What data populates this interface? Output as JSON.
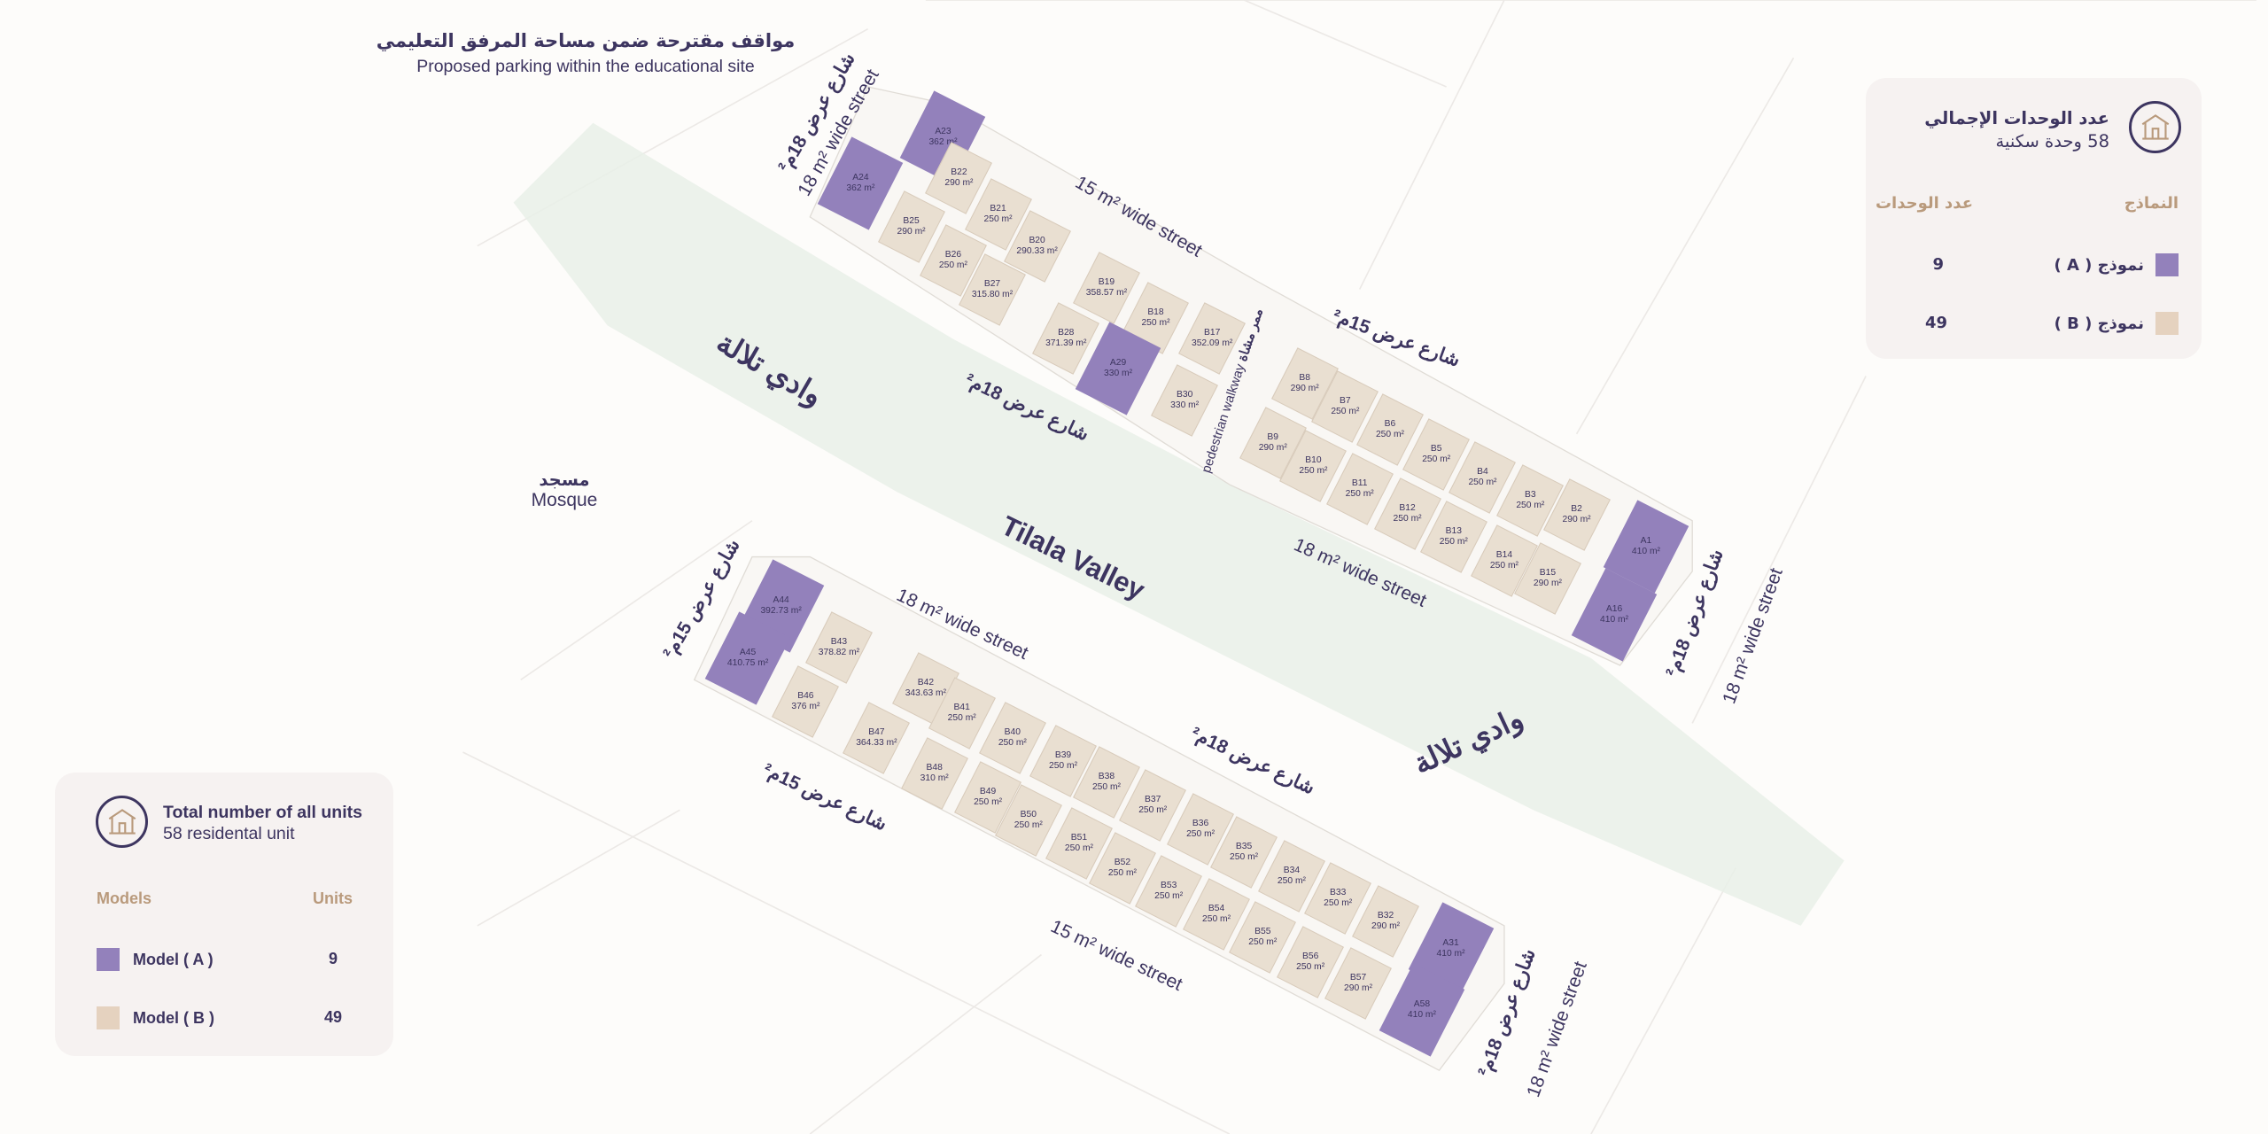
{
  "header": {
    "title_ar": "مواقف مقترحة ضمن مساحة المرفق التعليمي",
    "title_en": "Proposed parking within the educational site"
  },
  "colors": {
    "model_a": "#9381bb",
    "model_b": "#e9dfd1",
    "text": "#3d3560",
    "accent": "#b99a7c",
    "valley": "#e9f0e7"
  },
  "legend_en": {
    "icon": "house-icon",
    "title": "Total number of all units",
    "subtitle": "58 residental unit",
    "col_models": "Models",
    "col_units": "Units",
    "rows": [
      {
        "label": "Model ( A )",
        "units": "9"
      },
      {
        "label": "Model ( B )",
        "units": "49"
      }
    ]
  },
  "legend_ar": {
    "icon": "house-icon",
    "title": "عدد الوحدات الإجمالي",
    "subtitle": "58 وحدة سكنية",
    "col_models": "النماذج",
    "col_units": "عدد الوحدات",
    "rows": [
      {
        "label": "نموذج ( A )",
        "units": "9"
      },
      {
        "label": "نموذج ( B )",
        "units": "49"
      }
    ]
  },
  "places": {
    "mosque_ar": "مسجد",
    "mosque_en": "Mosque",
    "valley_en": "Tilala Valley",
    "valley_ar": "وادي تلالة",
    "walkway_ar": "ممر مشاة",
    "walkway_en": "pedestrian walkway"
  },
  "streets": [
    {
      "text": "شارع عرض 18م²"
    },
    {
      "text": "18 m² wide street"
    },
    {
      "text": "15 m² wide street"
    },
    {
      "text": "شارع عرض 15م²"
    },
    {
      "text": "شارع عرض 18م²"
    },
    {
      "text": "18 m² wide street"
    },
    {
      "text": "شارع عرض 18م²"
    },
    {
      "text": "18 m² wide street"
    },
    {
      "text": "شارع عرض 15م²"
    },
    {
      "text": "18 m² wide street"
    },
    {
      "text": "شارع عرض 18م²"
    },
    {
      "text": "شارع عرض 15م²"
    },
    {
      "text": "15 m² wide street"
    },
    {
      "text": "شارع عرض 18م²"
    },
    {
      "text": "18 m² wide street"
    }
  ],
  "units": [
    {
      "id": "A23",
      "area": "362 m²",
      "model": "A"
    },
    {
      "id": "A24",
      "area": "362 m²",
      "model": "A"
    },
    {
      "id": "B22",
      "area": "290 m²",
      "model": "B"
    },
    {
      "id": "B21",
      "area": "250 m²",
      "model": "B"
    },
    {
      "id": "B20",
      "area": "290.33 m²",
      "model": "B"
    },
    {
      "id": "B25",
      "area": "290 m²",
      "model": "B"
    },
    {
      "id": "B26",
      "area": "250 m²",
      "model": "B"
    },
    {
      "id": "B27",
      "area": "315.80 m²",
      "model": "B"
    },
    {
      "id": "B19",
      "area": "358.57 m²",
      "model": "B"
    },
    {
      "id": "B18",
      "area": "250 m²",
      "model": "B"
    },
    {
      "id": "B17",
      "area": "352.09 m²",
      "model": "B"
    },
    {
      "id": "B28",
      "area": "371.39 m²",
      "model": "B"
    },
    {
      "id": "A29",
      "area": "330 m²",
      "model": "A"
    },
    {
      "id": "B30",
      "area": "330 m²",
      "model": "B"
    },
    {
      "id": "B8",
      "area": "290 m²",
      "model": "B"
    },
    {
      "id": "B7",
      "area": "250 m²",
      "model": "B"
    },
    {
      "id": "B6",
      "area": "250 m²",
      "model": "B"
    },
    {
      "id": "B5",
      "area": "250 m²",
      "model": "B"
    },
    {
      "id": "B4",
      "area": "250 m²",
      "model": "B"
    },
    {
      "id": "B3",
      "area": "250 m²",
      "model": "B"
    },
    {
      "id": "B2",
      "area": "290 m²",
      "model": "B"
    },
    {
      "id": "A1",
      "area": "410 m²",
      "model": "A"
    },
    {
      "id": "A16",
      "area": "410 m²",
      "model": "A"
    },
    {
      "id": "B9",
      "area": "290 m²",
      "model": "B"
    },
    {
      "id": "B10",
      "area": "250 m²",
      "model": "B"
    },
    {
      "id": "B11",
      "area": "250 m²",
      "model": "B"
    },
    {
      "id": "B12",
      "area": "250 m²",
      "model": "B"
    },
    {
      "id": "B13",
      "area": "250 m²",
      "model": "B"
    },
    {
      "id": "B14",
      "area": "250 m²",
      "model": "B"
    },
    {
      "id": "B15",
      "area": "290 m²",
      "model": "B"
    },
    {
      "id": "A44",
      "area": "392.73 m²",
      "model": "A"
    },
    {
      "id": "A45",
      "area": "410.75 m²",
      "model": "A"
    },
    {
      "id": "B43",
      "area": "378.82 m²",
      "model": "B"
    },
    {
      "id": "B42",
      "area": "343.63 m²",
      "model": "B"
    },
    {
      "id": "B41",
      "area": "250 m²",
      "model": "B"
    },
    {
      "id": "B40",
      "area": "250 m²",
      "model": "B"
    },
    {
      "id": "B39",
      "area": "250 m²",
      "model": "B"
    },
    {
      "id": "B38",
      "area": "250 m²",
      "model": "B"
    },
    {
      "id": "B37",
      "area": "250 m²",
      "model": "B"
    },
    {
      "id": "B36",
      "area": "250 m²",
      "model": "B"
    },
    {
      "id": "B35",
      "area": "250 m²",
      "model": "B"
    },
    {
      "id": "B34",
      "area": "250 m²",
      "model": "B"
    },
    {
      "id": "B33",
      "area": "250 m²",
      "model": "B"
    },
    {
      "id": "B32",
      "area": "290 m²",
      "model": "B"
    },
    {
      "id": "A31",
      "area": "410 m²",
      "model": "A"
    },
    {
      "id": "A58",
      "area": "410 m²",
      "model": "A"
    },
    {
      "id": "B46",
      "area": "376 m²",
      "model": "B"
    },
    {
      "id": "B47",
      "area": "364.33 m²",
      "model": "B"
    },
    {
      "id": "B48",
      "area": "310 m²",
      "model": "B"
    },
    {
      "id": "B49",
      "area": "250 m²",
      "model": "B"
    },
    {
      "id": "B50",
      "area": "250 m²",
      "model": "B"
    },
    {
      "id": "B51",
      "area": "250 m²",
      "model": "B"
    },
    {
      "id": "B52",
      "area": "250 m²",
      "model": "B"
    },
    {
      "id": "B53",
      "area": "250 m²",
      "model": "B"
    },
    {
      "id": "B54",
      "area": "250 m²",
      "model": "B"
    },
    {
      "id": "B55",
      "area": "250 m²",
      "model": "B"
    },
    {
      "id": "B56",
      "area": "250 m²",
      "model": "B"
    },
    {
      "id": "B57",
      "area": "290 m²",
      "model": "B"
    }
  ]
}
